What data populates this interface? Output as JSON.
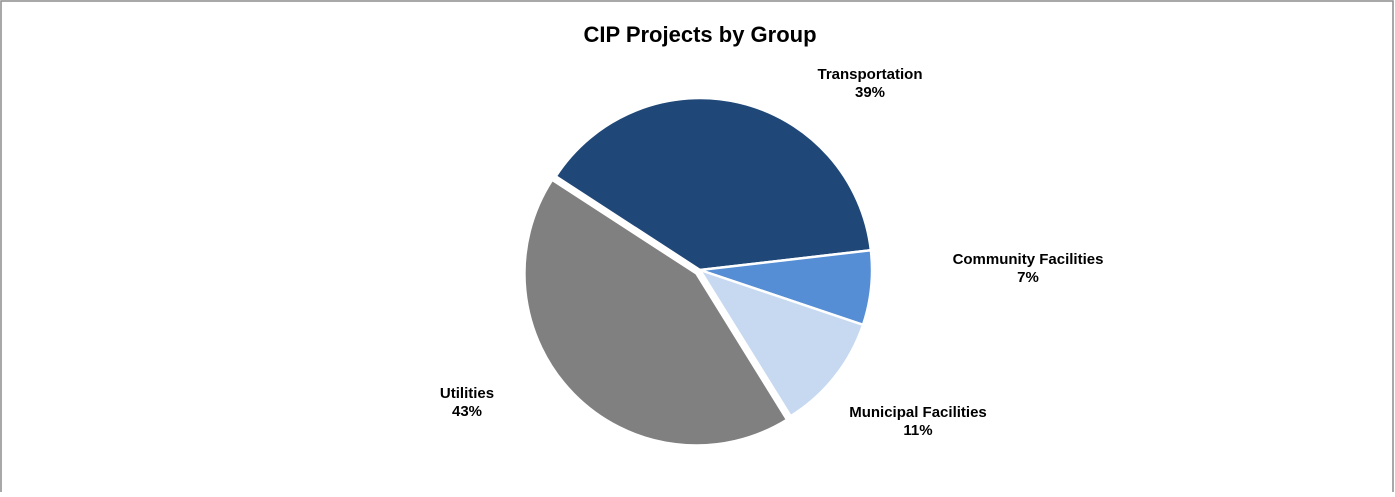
{
  "chart_data": {
    "type": "pie",
    "title": "CIP Projects by Group",
    "categories": [
      "Transportation",
      "Community Facilities",
      "Municipal Facilities",
      "Utilities"
    ],
    "values": [
      39,
      7,
      11,
      43
    ],
    "value_labels": [
      "39%",
      "7%",
      "11%",
      "43%"
    ],
    "colors": [
      "#1f4778",
      "#558ed5",
      "#c6d9f1",
      "#808080"
    ]
  }
}
